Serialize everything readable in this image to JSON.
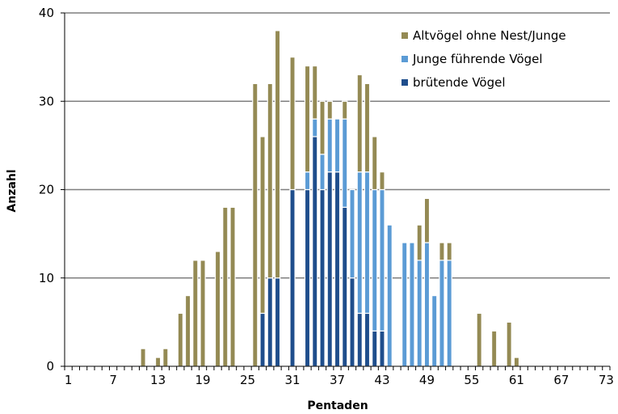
{
  "chart_data": {
    "type": "bar",
    "stacked": true,
    "title": "",
    "xlabel": "Pentaden",
    "ylabel": "Anzahl",
    "ylim": [
      0,
      40
    ],
    "yticks": [
      0,
      10,
      20,
      30,
      40
    ],
    "grid": "horizontal",
    "legend_position": "top-right",
    "x_start": 1,
    "x_end": 73,
    "x_tick_labels": [
      "1",
      "7",
      "13",
      "19",
      "25",
      "31",
      "37",
      "43",
      "49",
      "55",
      "61",
      "67",
      "73"
    ],
    "series": [
      {
        "name": "brütende Vögel",
        "color": "#1F4E8C",
        "values": [
          0,
          0,
          0,
          0,
          0,
          0,
          0,
          0,
          0,
          0,
          0,
          0,
          0,
          0,
          0,
          0,
          0,
          0,
          0,
          0,
          0,
          0,
          0,
          0,
          0,
          0,
          6,
          10,
          10,
          0,
          20,
          0,
          20,
          26,
          20,
          22,
          22,
          18,
          10,
          6,
          6,
          4,
          4,
          0,
          0,
          0,
          0,
          0,
          0,
          0,
          0,
          0,
          0,
          0,
          0,
          0,
          0,
          0,
          0,
          0,
          0,
          0,
          0,
          0,
          0,
          0,
          0,
          0,
          0,
          0,
          0,
          0,
          0
        ]
      },
      {
        "name": "Junge führende Vögel",
        "color": "#5B9BD5",
        "values": [
          0,
          0,
          0,
          0,
          0,
          0,
          0,
          0,
          0,
          0,
          0,
          0,
          0,
          0,
          0,
          0,
          0,
          0,
          0,
          0,
          0,
          0,
          0,
          0,
          0,
          0,
          0,
          0,
          0,
          0,
          0,
          0,
          2,
          2,
          4,
          6,
          6,
          10,
          10,
          16,
          16,
          16,
          16,
          16,
          0,
          14,
          14,
          12,
          14,
          8,
          12,
          12,
          0,
          0,
          0,
          0,
          0,
          0,
          0,
          0,
          0,
          0,
          0,
          0,
          0,
          0,
          0,
          0,
          0,
          0,
          0,
          0,
          0
        ]
      },
      {
        "name": "Altvögel ohne Nest/Junge",
        "color": "#948A54",
        "values": [
          0,
          0,
          0,
          0,
          0,
          0,
          0,
          0,
          0,
          0,
          2,
          0,
          1,
          2,
          0,
          6,
          8,
          12,
          12,
          0,
          13,
          18,
          18,
          0,
          0,
          32,
          20,
          22,
          28,
          0,
          15,
          0,
          12,
          6,
          6,
          2,
          0,
          2,
          0,
          11,
          10,
          6,
          2,
          0,
          0,
          0,
          0,
          4,
          5,
          0,
          2,
          2,
          0,
          0,
          0,
          6,
          0,
          4,
          0,
          5,
          1,
          0,
          0,
          0,
          0,
          0,
          0,
          0,
          0,
          0,
          0,
          0,
          0
        ]
      }
    ]
  }
}
